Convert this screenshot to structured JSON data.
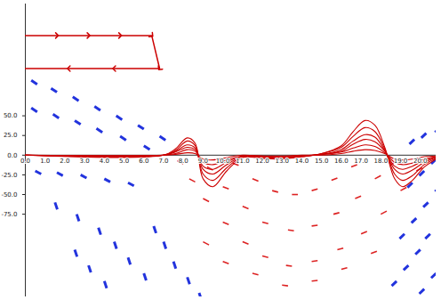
{
  "chart_data": {
    "type": "line",
    "xlim": [
      0,
      20.8
    ],
    "ylim": [
      -180,
      192
    ],
    "xticks": [
      {
        "value": 0,
        "label": "0.0"
      },
      {
        "value": 1,
        "label": "1.0"
      },
      {
        "value": 2,
        "label": "2.0"
      },
      {
        "value": 3,
        "label": "3.0"
      },
      {
        "value": 4,
        "label": "4.0"
      },
      {
        "value": 5,
        "label": "5.0"
      },
      {
        "value": 6,
        "label": "6.0"
      },
      {
        "value": 7,
        "label": "7.0"
      },
      {
        "value": 8,
        "label": "8.0"
      },
      {
        "value": 9,
        "label": "9.0"
      },
      {
        "value": 10,
        "label": "10.0"
      },
      {
        "value": 11,
        "label": "11.0"
      },
      {
        "value": 12,
        "label": "12.0"
      },
      {
        "value": 13,
        "label": "13.0"
      },
      {
        "value": 14,
        "label": "14.0"
      },
      {
        "value": 15,
        "label": "15.0"
      },
      {
        "value": 16,
        "label": "16.0"
      },
      {
        "value": 17,
        "label": "17.0"
      },
      {
        "value": 18,
        "label": "18.0"
      },
      {
        "value": 19,
        "label": "19.0"
      },
      {
        "value": 20,
        "label": "20.0"
      }
    ],
    "yticks": [
      {
        "value": -75,
        "label": "-75.0"
      },
      {
        "value": -50,
        "label": "-50.0"
      },
      {
        "value": -25,
        "label": "-25.0"
      },
      {
        "value": 0,
        "label": "0.0"
      },
      {
        "value": 25,
        "label": "25.0"
      },
      {
        "value": 50,
        "label": "50.0"
      }
    ],
    "x": [
      0,
      7,
      7.6,
      8.2,
      8.6,
      9.0,
      9.5,
      10.2,
      11,
      12,
      13,
      14,
      15,
      16,
      16.6,
      17.2,
      17.7,
      18.2,
      18.7,
      19.1,
      19.6,
      20.2,
      20.8
    ],
    "series": [
      {
        "color": "#cc0000",
        "values": [
          0,
          0,
          8,
          22,
          15,
          -30,
          -40,
          -20,
          -3,
          -4,
          -5,
          -2,
          2,
          12,
          30,
          44,
          38,
          10,
          -30,
          -40,
          -32,
          -15,
          -5
        ]
      },
      {
        "color": "#cc0000",
        "values": [
          0,
          0,
          6,
          18,
          12,
          -24,
          -32,
          -16,
          -2,
          -3,
          -4,
          -2,
          2,
          10,
          24,
          35,
          30,
          8,
          -24,
          -32,
          -26,
          -12,
          -4
        ]
      },
      {
        "color": "#cc0000",
        "values": [
          0,
          0,
          5,
          13,
          9,
          -18,
          -24,
          -12,
          -2,
          -2,
          -3,
          -1,
          1,
          7,
          18,
          26,
          23,
          6,
          -18,
          -24,
          -19,
          -9,
          -3
        ]
      },
      {
        "color": "#cc0000",
        "values": [
          0,
          0,
          4,
          10,
          7,
          -14,
          -18,
          -9,
          -1,
          -2,
          -2,
          -1,
          1,
          5,
          14,
          20,
          17,
          5,
          -14,
          -18,
          -14,
          -7,
          -2
        ]
      },
      {
        "color": "#cc0000",
        "values": [
          0,
          0,
          2,
          7,
          5,
          -9,
          -12,
          -6,
          -1,
          -1,
          -2,
          -1,
          1,
          4,
          9,
          13,
          11,
          3,
          -9,
          -12,
          -10,
          -5,
          -2
        ]
      },
      {
        "color": "#cc0000",
        "values": [
          0,
          0,
          1,
          3,
          2,
          -5,
          -6,
          -3,
          0,
          -1,
          -1,
          0,
          0,
          2,
          5,
          7,
          6,
          2,
          -5,
          -6,
          -5,
          -2,
          -1
        ]
      }
    ],
    "outline": {
      "color": "#cc0000",
      "marker": "arrow",
      "x": [
        0,
        1.6,
        3.2,
        4.8,
        6.4,
        6.8,
        4.5,
        2.2,
        0
      ],
      "y": [
        152,
        152,
        152,
        152,
        152,
        110,
        110,
        110,
        110
      ]
    },
    "vector_fields": [
      {
        "color": "#2233dd",
        "x": [
          0.3,
          1.3,
          2.4,
          3.5,
          4.6,
          5.7,
          6.8,
          0.3,
          1.4,
          2.5,
          3.6,
          4.8,
          6.0,
          0.5,
          1.6,
          2.8,
          4.0,
          5.2,
          1.5,
          2.6,
          3.7,
          4.5,
          5.2,
          6.0,
          2.5,
          3.2,
          4.0,
          6.5,
          7.0,
          7.5,
          8.2,
          8.8,
          21.0,
          20.3,
          19.7,
          20.8,
          20.2,
          19.6,
          21.0,
          20.4,
          19.8,
          19.2,
          20.5,
          20.0,
          19.4,
          18.8,
          20.8,
          20.2
        ],
        "y": [
          95,
          85,
          74,
          62,
          50,
          38,
          24,
          60,
          52,
          44,
          34,
          24,
          12,
          -20,
          -22,
          -25,
          -30,
          -35,
          -60,
          -75,
          -92,
          -110,
          -130,
          -150,
          -120,
          -140,
          -160,
          -90,
          -110,
          -135,
          -155,
          -175,
          35,
          28,
          20,
          -5,
          -20,
          -35,
          -40,
          -60,
          -80,
          -100,
          -100,
          -120,
          -140,
          -160,
          -150,
          -170
        ],
        "u": [
          0.3,
          0.3,
          0.3,
          0.3,
          0.3,
          0.3,
          0.3,
          0.3,
          0.3,
          0.3,
          0.3,
          0.3,
          0.3,
          0.3,
          0.3,
          0.3,
          0.3,
          0.3,
          0.12,
          0.12,
          0.12,
          0.12,
          0.12,
          0.12,
          0.12,
          0.12,
          0.12,
          0.12,
          0.12,
          0.12,
          0.12,
          0.12,
          -0.25,
          -0.25,
          -0.25,
          -0.25,
          -0.25,
          -0.25,
          -0.25,
          -0.25,
          -0.25,
          -0.25,
          -0.25,
          -0.25,
          -0.25,
          -0.25,
          -0.25,
          -0.25
        ],
        "v": [
          -5,
          -5,
          -5,
          -5,
          -5,
          -5,
          -5,
          -5,
          -5,
          -5,
          -5,
          -5,
          -5,
          -4,
          -4,
          -4,
          -4,
          -4,
          -9,
          -9,
          -9,
          -9,
          -9,
          -9,
          -9,
          -9,
          -9,
          -9,
          -9,
          -9,
          -9,
          -9,
          -6,
          -6,
          -6,
          -6,
          -6,
          -6,
          -6,
          -6,
          -6,
          -6,
          -6,
          -6,
          -6,
          -6,
          -6,
          -6
        ]
      },
      {
        "color": "#dd2222",
        "x": [
          7.7,
          8.3,
          9.0,
          10.0,
          11.0,
          12.0,
          13.2,
          14.5,
          15.8,
          17.0,
          18.0,
          19.0,
          19.8,
          9.2,
          10.0,
          11.0,
          12.0,
          13.3,
          14.5,
          15.6,
          16.7,
          17.7,
          18.5,
          10.5,
          11.5,
          12.5,
          13.5,
          14.5,
          15.5,
          16.5,
          9.0,
          10.0,
          11.5,
          13.0,
          14.5,
          16.0,
          17.5
        ],
        "y": [
          -7,
          -30,
          -55,
          -85,
          -110,
          -128,
          -140,
          -135,
          -120,
          -100,
          -75,
          -45,
          -20,
          -15,
          -40,
          -65,
          -85,
          -95,
          -90,
          -75,
          -55,
          -30,
          -12,
          -10,
          -30,
          -45,
          -50,
          -45,
          -32,
          -15,
          -110,
          -135,
          -150,
          -165,
          -160,
          -145,
          -125
        ],
        "u": [
          0.3,
          0.3,
          0.3,
          0.3,
          0.3,
          0.3,
          0.3,
          0.3,
          0.3,
          0.3,
          0.3,
          0.3,
          0.3,
          0.3,
          0.3,
          0.3,
          0.3,
          0.3,
          0.3,
          0.3,
          0.3,
          0.3,
          0.3,
          0.3,
          0.3,
          0.3,
          0.3,
          0.3,
          0.3,
          0.3,
          0.3,
          0.3,
          0.3,
          0.3,
          0.3,
          0.3,
          0.3
        ],
        "v": [
          -4,
          -4,
          -4,
          -3,
          -3,
          -2,
          -1,
          1,
          2,
          3,
          4,
          4,
          4,
          -4,
          -3,
          -3,
          -2,
          -1,
          1,
          2,
          3,
          4,
          4,
          -3,
          -3,
          -2,
          0,
          2,
          3,
          3,
          -4,
          -3,
          -2,
          -1,
          1,
          2,
          3
        ]
      }
    ]
  }
}
